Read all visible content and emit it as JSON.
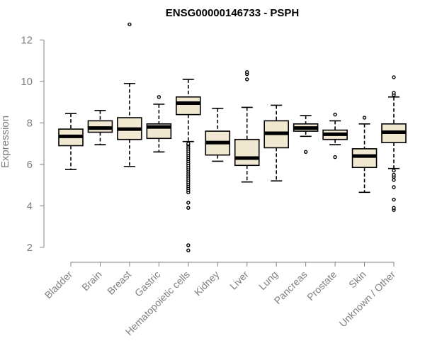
{
  "chart_data": {
    "type": "box",
    "title": "ENSG00000146733 - PSPH",
    "xlabel": "",
    "ylabel": "Expression",
    "ylim": [
      1.55,
      12.9
    ],
    "yticks": [
      2,
      4,
      6,
      8,
      10,
      12
    ],
    "grid": false,
    "colors": {
      "box_fill": "#F0E8D0",
      "box_stroke": "#000000",
      "median": "#000000",
      "axis": "#808080",
      "title": "#000000"
    },
    "categories": [
      "Bladder",
      "Brain",
      "Breast",
      "Gastric",
      "Hematopoietic cells",
      "Kidney",
      "Liver",
      "Lung",
      "Pancreas",
      "Prostate",
      "Skin",
      "Unknown / Other"
    ],
    "boxes": [
      {
        "category": "Bladder",
        "min": 5.75,
        "q1": 6.9,
        "median": 7.35,
        "q3": 7.7,
        "max": 8.45,
        "outliers": []
      },
      {
        "category": "Brain",
        "min": 6.95,
        "q1": 7.55,
        "median": 7.75,
        "q3": 8.1,
        "max": 8.6,
        "outliers": []
      },
      {
        "category": "Breast",
        "min": 5.9,
        "q1": 7.2,
        "median": 7.7,
        "q3": 8.25,
        "max": 9.9,
        "outliers": [
          12.75
        ]
      },
      {
        "category": "Gastric",
        "min": 6.6,
        "q1": 7.25,
        "median": 7.8,
        "q3": 7.95,
        "max": 8.9,
        "outliers": [
          9.25
        ]
      },
      {
        "category": "Hematopoietic cells",
        "min": 7.1,
        "q1": 8.4,
        "median": 8.95,
        "q3": 9.25,
        "max": 10.1,
        "outliers": [
          1.85,
          2.1,
          3.9,
          4.15,
          4.65,
          4.75,
          4.85,
          4.95,
          5.05,
          5.15,
          5.25,
          5.35,
          5.45,
          5.55,
          5.65,
          5.75,
          5.85,
          5.95,
          6.05,
          6.15,
          6.25,
          6.35,
          6.45,
          6.55,
          6.65,
          6.75,
          6.85,
          6.95,
          7.0
        ]
      },
      {
        "category": "Kidney",
        "min": 6.15,
        "q1": 6.45,
        "median": 7.05,
        "q3": 7.6,
        "max": 8.7,
        "outliers": []
      },
      {
        "category": "Liver",
        "min": 5.15,
        "q1": 5.95,
        "median": 6.3,
        "q3": 7.2,
        "max": 8.75,
        "outliers": [
          10.1,
          10.35,
          10.45
        ]
      },
      {
        "category": "Lung",
        "min": 5.2,
        "q1": 6.8,
        "median": 7.5,
        "q3": 8.1,
        "max": 8.85,
        "outliers": []
      },
      {
        "category": "Pancreas",
        "min": 7.35,
        "q1": 7.6,
        "median": 7.75,
        "q3": 7.95,
        "max": 8.35,
        "outliers": [
          6.6
        ]
      },
      {
        "category": "Prostate",
        "min": 6.95,
        "q1": 7.2,
        "median": 7.45,
        "q3": 7.65,
        "max": 8.1,
        "outliers": [
          6.35,
          8.4
        ]
      },
      {
        "category": "Skin",
        "min": 4.65,
        "q1": 5.85,
        "median": 6.4,
        "q3": 6.75,
        "max": 7.95,
        "outliers": [
          8.25
        ]
      },
      {
        "category": "Unknown / Other",
        "min": 5.8,
        "q1": 7.05,
        "median": 7.55,
        "q3": 7.95,
        "max": 9.25,
        "outliers": [
          3.8,
          3.9,
          4.3,
          4.9,
          5.25,
          5.4,
          5.5,
          5.7,
          9.35,
          9.45,
          10.2
        ]
      }
    ]
  }
}
